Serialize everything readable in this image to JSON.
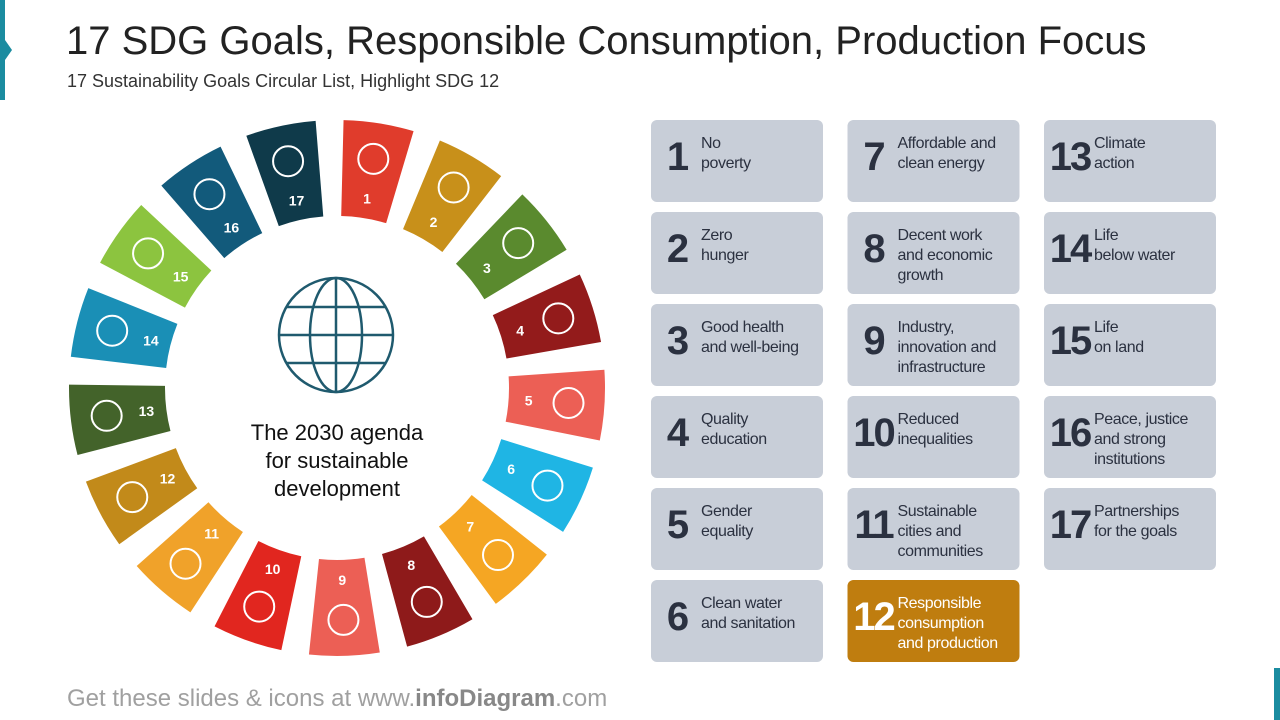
{
  "header": {
    "title": "17 SDG Goals, Responsible Consumption, Production Focus",
    "subtitle": "17 Sustainability Goals Circular List, Highlight SDG 12"
  },
  "center_text": "The 2030 agenda\nfor sustainable\ndevelopment",
  "highlight_goal": 12,
  "goals": [
    {
      "number": 1,
      "label": "No\npoverty",
      "color": "#e03c2c"
    },
    {
      "number": 2,
      "label": "Zero\nhunger",
      "color": "#c8901a"
    },
    {
      "number": 3,
      "label": "Good health\nand well-being",
      "color": "#5a8a2e"
    },
    {
      "number": 4,
      "label": "Quality\neducation",
      "color": "#931b1b"
    },
    {
      "number": 5,
      "label": "Gender\nequality",
      "color": "#ec5f55"
    },
    {
      "number": 6,
      "label": "Clean water\nand sanitation",
      "color": "#1fb5e4"
    },
    {
      "number": 7,
      "label": "Affordable and\nclean energy",
      "color": "#f5a623"
    },
    {
      "number": 8,
      "label": "Decent work\nand economic\ngrowth",
      "color": "#8e1a1a"
    },
    {
      "number": 9,
      "label": "Industry,\ninnovation and\ninfrastructure",
      "color": "#ec5f55"
    },
    {
      "number": 10,
      "label": "Reduced\ninequalities",
      "color": "#e1261f"
    },
    {
      "number": 11,
      "label": "Sustainable\ncities and\ncommunities",
      "color": "#f0a22a"
    },
    {
      "number": 12,
      "label": "Responsible\nconsumption\nand production",
      "color": "#c28a1a"
    },
    {
      "number": 13,
      "label": "Climate\naction",
      "color": "#43632a"
    },
    {
      "number": 14,
      "label": "Life\nbelow water",
      "color": "#1a8fb6"
    },
    {
      "number": 15,
      "label": "Life\non land",
      "color": "#8cc43f"
    },
    {
      "number": 16,
      "label": "Peace, justice\nand strong\ninstitutions",
      "color": "#125a7b"
    },
    {
      "number": 17,
      "label": "Partnerships\nfor the goals",
      "color": "#0f3a4a"
    }
  ],
  "footer": [
    "Get these slides & icons at www.",
    "infoDiagram",
    ".com"
  ]
}
